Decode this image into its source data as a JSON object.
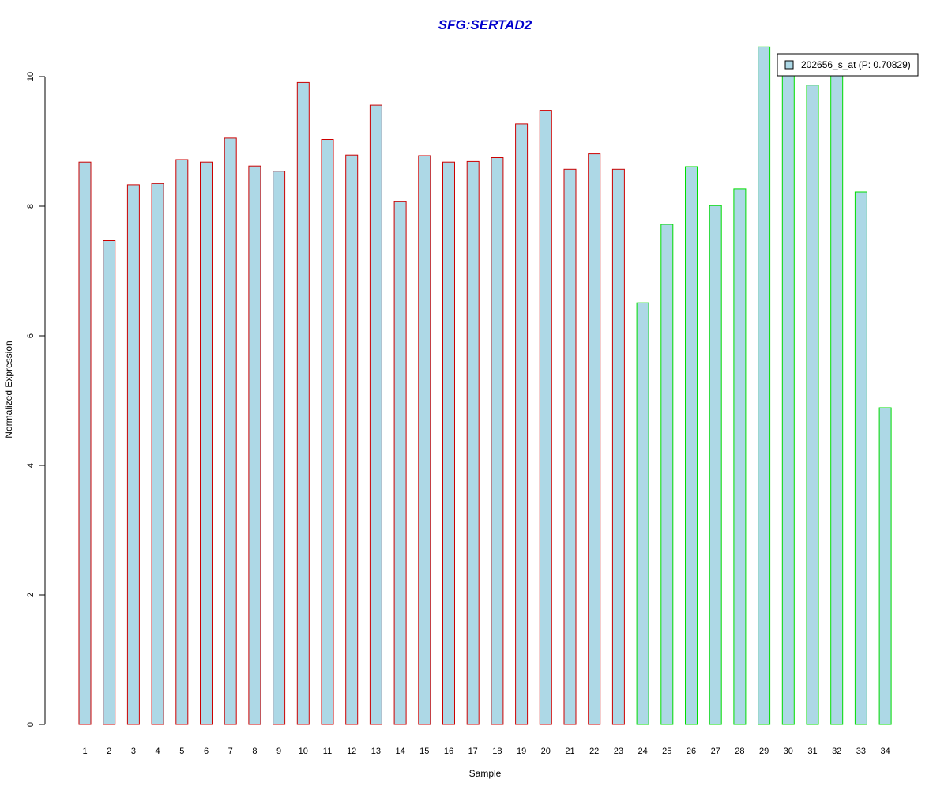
{
  "chart_data": {
    "type": "bar",
    "title": "SFG:SERTAD2",
    "xlabel": "Sample",
    "ylabel": "Normalized Expression",
    "ylim": [
      0,
      10.5
    ],
    "yticks": [
      "0",
      "2",
      "4",
      "6",
      "8",
      "10"
    ],
    "categories": [
      "1",
      "2",
      "3",
      "4",
      "5",
      "6",
      "7",
      "8",
      "9",
      "10",
      "11",
      "12",
      "13",
      "14",
      "15",
      "16",
      "17",
      "18",
      "19",
      "20",
      "21",
      "22",
      "23",
      "24",
      "25",
      "26",
      "27",
      "28",
      "29",
      "30",
      "31",
      "32",
      "33",
      "34"
    ],
    "series": [
      {
        "name": "202656_s_at (P: 0.70829)",
        "values": [
          8.68,
          7.47,
          8.33,
          8.35,
          8.72,
          8.68,
          9.05,
          8.62,
          8.54,
          9.91,
          9.03,
          8.79,
          9.56,
          8.07,
          8.78,
          8.68,
          8.69,
          8.75,
          9.27,
          9.48,
          8.57,
          8.81,
          8.57,
          6.51,
          7.72,
          8.61,
          8.01,
          8.27,
          10.46,
          10.1,
          9.87,
          10.05,
          8.22,
          4.89
        ],
        "fill": "#add8e6",
        "group_border_colors": [
          "#cc0000",
          "#cc0000",
          "#cc0000",
          "#cc0000",
          "#cc0000",
          "#cc0000",
          "#cc0000",
          "#cc0000",
          "#cc0000",
          "#cc0000",
          "#cc0000",
          "#cc0000",
          "#cc0000",
          "#cc0000",
          "#cc0000",
          "#cc0000",
          "#cc0000",
          "#cc0000",
          "#cc0000",
          "#cc0000",
          "#cc0000",
          "#cc0000",
          "#cc0000",
          "#00dd00",
          "#00dd00",
          "#00dd00",
          "#00dd00",
          "#00dd00",
          "#00dd00",
          "#00dd00",
          "#00dd00",
          "#00dd00",
          "#00dd00",
          "#00dd00"
        ]
      }
    ],
    "legend_placement": "top-right",
    "title_color": "#0000cc",
    "grid": false
  }
}
